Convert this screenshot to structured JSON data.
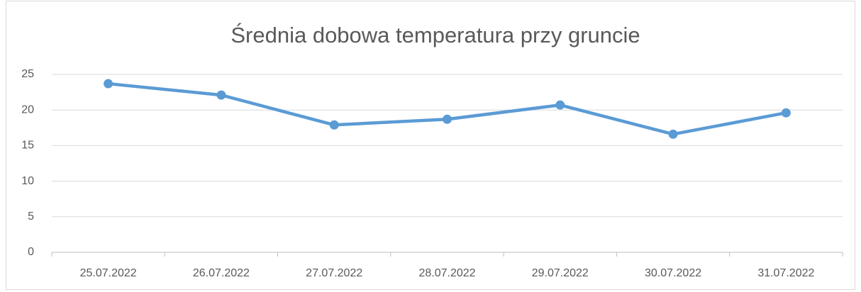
{
  "chart_data": {
    "type": "line",
    "title": "Średnia dobowa temperatura przy gruncie",
    "categories": [
      "25.07.2022",
      "26.07.2022",
      "27.07.2022",
      "28.07.2022",
      "29.07.2022",
      "30.07.2022",
      "31.07.2022"
    ],
    "values": [
      23.7,
      22.1,
      17.9,
      18.7,
      20.7,
      16.6,
      19.6
    ],
    "color": "#5b9bd5",
    "ylim": [
      0,
      25
    ],
    "yticks": [
      0,
      5,
      10,
      15,
      20,
      25
    ],
    "grid": true
  }
}
